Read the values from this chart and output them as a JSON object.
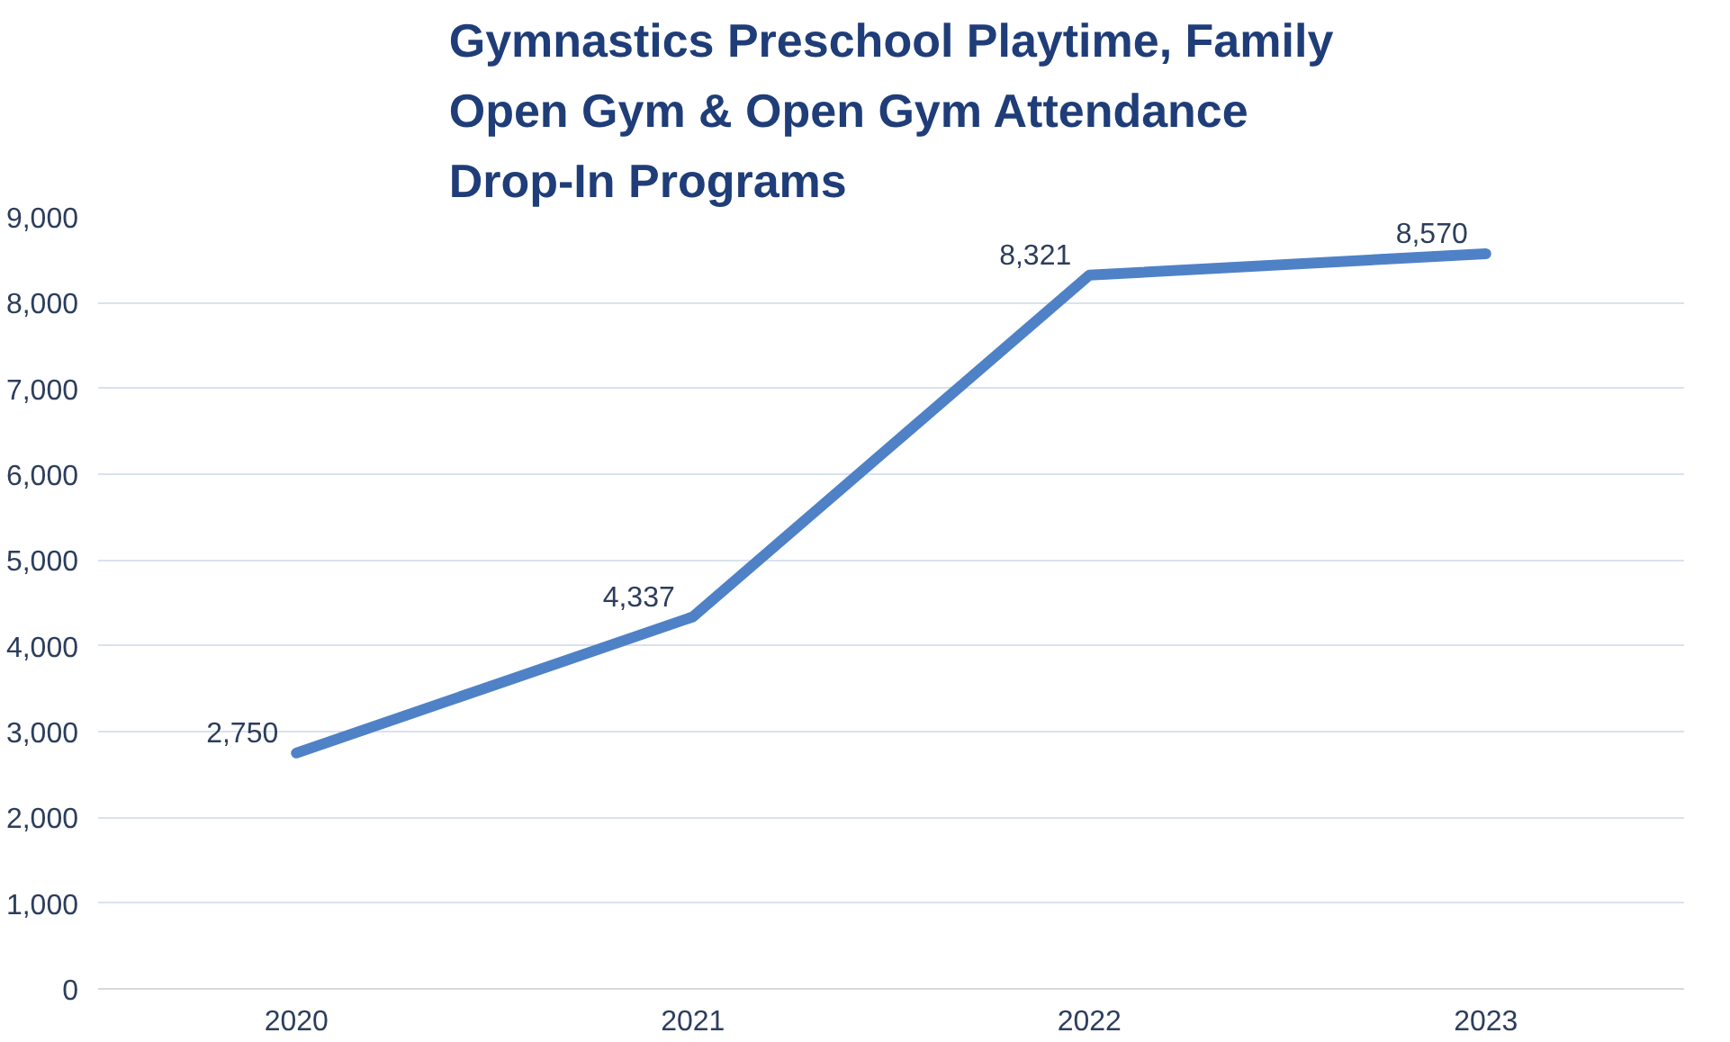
{
  "chart_data": {
    "type": "line",
    "title": "Gymnastics Preschool Playtime, Family Open Gym & Open Gym Attendance Drop-In Programs",
    "categories": [
      "2020",
      "2021",
      "2022",
      "2023"
    ],
    "series": [
      {
        "color": "#4f81c7",
        "values": [
          2750,
          4337,
          8321,
          8570
        ],
        "value_labels": [
          "2,750",
          "4,337",
          "8,321",
          "8,570"
        ]
      }
    ],
    "ylim": [
      0,
      9000
    ],
    "yticks": [
      {
        "value": 0,
        "label": "0"
      },
      {
        "value": 1000,
        "label": "1,000"
      },
      {
        "value": 2000,
        "label": "2,000"
      },
      {
        "value": 3000,
        "label": "3,000"
      },
      {
        "value": 4000,
        "label": "4,000"
      },
      {
        "value": 5000,
        "label": "5,000"
      },
      {
        "value": 6000,
        "label": "6,000"
      },
      {
        "value": 7000,
        "label": "7,000"
      },
      {
        "value": 8000,
        "label": "8,000"
      },
      {
        "value": 9000,
        "label": "9,000"
      }
    ],
    "grid": "y",
    "marker": "none",
    "line_style": "solid"
  }
}
